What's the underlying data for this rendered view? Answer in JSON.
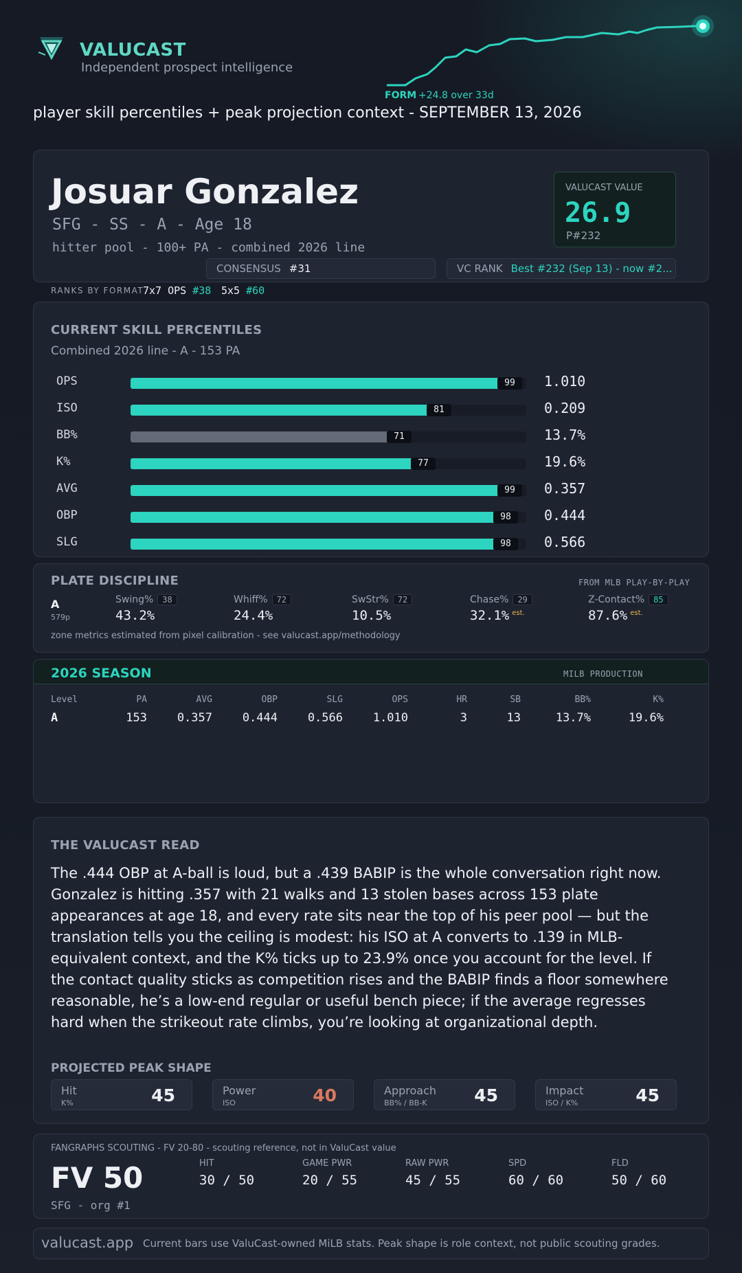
{
  "header": {
    "brand": "VALUCAST",
    "tagline": "Independent prospect intelligence",
    "form_label": "FORM",
    "form_delta": "+24.8 over 33d",
    "subtitle": "player skill percentiles + peak projection context - SEPTEMBER 13, 2026",
    "icons": [
      "valucast-logo-icon",
      "form-sparkline-icon"
    ],
    "accent_color": "#2dd4bf"
  },
  "player": {
    "name": "Josuar Gonzalez",
    "meta": "SFG - SS - A - Age 18",
    "pool": "hitter pool - 100+ PA - combined 2026 line",
    "vc_label": "VALUCAST VALUE",
    "vc_value": "26.9",
    "vc_rank": "P#232",
    "consensus_label": "CONSENSUS",
    "consensus_value": "#31",
    "vc_rank_label": "VC RANK",
    "vc_rank_value": "Best #232 (Sep 13) - now #2..."
  },
  "formats": {
    "label": "RANKS BY FORMAT",
    "f1_name": "7x7 OPS",
    "f1_rank": "#38",
    "f2_name": "5x5",
    "f2_rank": "#60"
  },
  "skills": {
    "title": "CURRENT SKILL PERCENTILES",
    "subtitle": "Combined 2026 line - A - 153 PA",
    "rows": [
      {
        "label": "OPS",
        "percentile": 99,
        "pctl_text": "99",
        "value": "1.010",
        "color": "#2dd4bf"
      },
      {
        "label": "ISO",
        "percentile": 81,
        "pctl_text": "81",
        "value": "0.209",
        "color": "#2dd4bf"
      },
      {
        "label": "BB%",
        "percentile": 71,
        "pctl_text": "71",
        "value": "13.7%",
        "color": "#646a78"
      },
      {
        "label": "K%",
        "percentile": 77,
        "pctl_text": "77",
        "value": "19.6%",
        "color": "#2dd4bf"
      },
      {
        "label": "AVG",
        "percentile": 99,
        "pctl_text": "99",
        "value": "0.357",
        "color": "#2dd4bf"
      },
      {
        "label": "OBP",
        "percentile": 98,
        "pctl_text": "98",
        "value": "0.444",
        "color": "#2dd4bf"
      },
      {
        "label": "SLG",
        "percentile": 98,
        "pctl_text": "98",
        "value": "0.566",
        "color": "#2dd4bf"
      }
    ]
  },
  "plate": {
    "title": "PLATE DISCIPLINE",
    "source": "FROM MLB PLAY-BY-PLAY",
    "level": "A",
    "pa": "579p",
    "metrics": [
      {
        "label": "Swing%",
        "pctl": "38",
        "value": "43.2%",
        "est": ""
      },
      {
        "label": "Whiff%",
        "pctl": "72",
        "value": "24.4%",
        "est": ""
      },
      {
        "label": "SwStr%",
        "pctl": "72",
        "value": "10.5%",
        "est": ""
      },
      {
        "label": "Chase%",
        "pctl": "29",
        "value": "32.1%",
        "est": "est."
      },
      {
        "label": "Z-Contact%",
        "pctl": "85",
        "value": "87.6%",
        "est": "est."
      }
    ],
    "footnote": "zone metrics estimated from pixel calibration - see valucast.app/methodology"
  },
  "season": {
    "title": "2026 SEASON",
    "note": "MILB PRODUCTION",
    "headers": [
      "Level",
      "PA",
      "AVG",
      "OBP",
      "SLG",
      "OPS",
      "HR",
      "SB",
      "BB%",
      "K%"
    ],
    "row": [
      "A",
      "153",
      "0.357",
      "0.444",
      "0.566",
      "1.010",
      "3",
      "13",
      "13.7%",
      "19.6%"
    ]
  },
  "read": {
    "title": "THE VALUCAST READ",
    "body": "The .444 OBP at A-ball is loud, but a .439 BABIP is the whole conversation right now. Gonzalez is hitting .357 with 21 walks and 13 stolen bases across 153 plate appearances at age 18, and every rate sits near the top of his peer pool — but the translation tells you the ceiling is modest: his ISO at A converts to .139 in MLB-equivalent context, and the K% ticks up to 23.9% once you account for the level. If the contact quality sticks as competition rises and the BABIP finds a floor somewhere reasonable, he’s a low-end regular or useful bench piece; if the average regresses hard when the strikeout rate climbs, you’re looking at organizational depth.",
    "peak_title": "PROJECTED PEAK SHAPE",
    "peak": [
      {
        "name": "Hit",
        "sub": "K%",
        "value": "45"
      },
      {
        "name": "Power",
        "sub": "ISO",
        "value": "40"
      },
      {
        "name": "Approach",
        "sub": "BB% / BB-K",
        "value": "45"
      },
      {
        "name": "Impact",
        "sub": "ISO / K%",
        "value": "45"
      }
    ]
  },
  "fangraphs": {
    "note": "FANGRAPHS SCOUTING - FV 20-80 - scouting reference, not in ValuCast value",
    "fv": "FV 50",
    "org": "SFG - org #1",
    "tools": [
      {
        "label": "HIT",
        "value": "30 / 50"
      },
      {
        "label": "GAME PWR",
        "value": "20 / 55"
      },
      {
        "label": "RAW PWR",
        "value": "45 / 55"
      },
      {
        "label": "SPD",
        "value": "60 / 60"
      },
      {
        "label": "FLD",
        "value": "50 / 60"
      }
    ]
  },
  "footer": {
    "site": "valucast.app",
    "note": "Current bars use ValuCast-owned MiLB stats. Peak shape is role context, not public scouting grades."
  }
}
